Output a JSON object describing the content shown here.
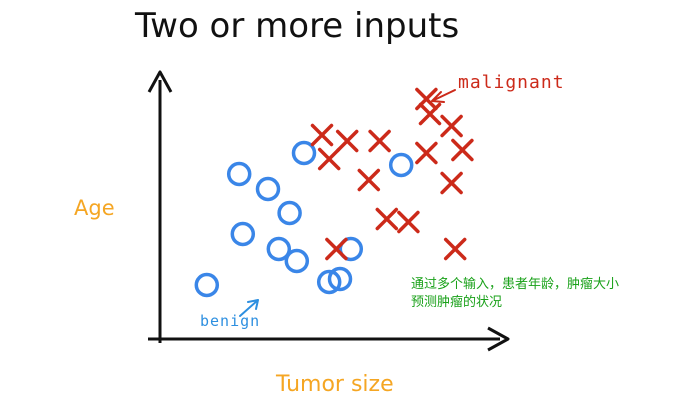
{
  "title": "Two or more inputs",
  "axes": {
    "x_label": "Tumor size",
    "y_label": "Age"
  },
  "annotations": {
    "malignant": "malignant",
    "benign": "benign"
  },
  "note": {
    "line1": "通过多个输入，患者年龄，肿瘤大小",
    "line2": "预测肿瘤的状况"
  },
  "colors": {
    "benign": "#3a86e8",
    "malignant": "#cc2a1a",
    "label": "#f5a623",
    "note": "#1aa11a"
  },
  "chart_data": {
    "type": "scatter",
    "xlabel": "Tumor size",
    "ylabel": "Age",
    "series": [
      {
        "name": "benign",
        "marker": "circle",
        "points": [
          [
            1.3,
            1.8
          ],
          [
            3.3,
            3.0
          ],
          [
            2.3,
            3.5
          ],
          [
            2.2,
            5.5
          ],
          [
            3.0,
            5.0
          ],
          [
            3.6,
            4.2
          ],
          [
            3.8,
            2.6
          ],
          [
            4.7,
            1.9
          ],
          [
            5.3,
            3.0
          ],
          [
            4.0,
            6.2
          ],
          [
            5.0,
            2.0
          ],
          [
            6.7,
            5.8
          ]
        ]
      },
      {
        "name": "malignant",
        "marker": "x",
        "points": [
          [
            4.5,
            6.8
          ],
          [
            5.2,
            6.6
          ],
          [
            5.8,
            5.3
          ],
          [
            6.3,
            4.0
          ],
          [
            6.9,
            3.9
          ],
          [
            7.4,
            6.2
          ],
          [
            8.1,
            5.2
          ],
          [
            8.2,
            3.0
          ],
          [
            7.4,
            8.0
          ],
          [
            8.1,
            7.1
          ],
          [
            7.5,
            7.5
          ],
          [
            8.4,
            6.3
          ],
          [
            4.9,
            3.0
          ],
          [
            4.7,
            6.0
          ],
          [
            6.1,
            6.6
          ]
        ]
      }
    ]
  }
}
